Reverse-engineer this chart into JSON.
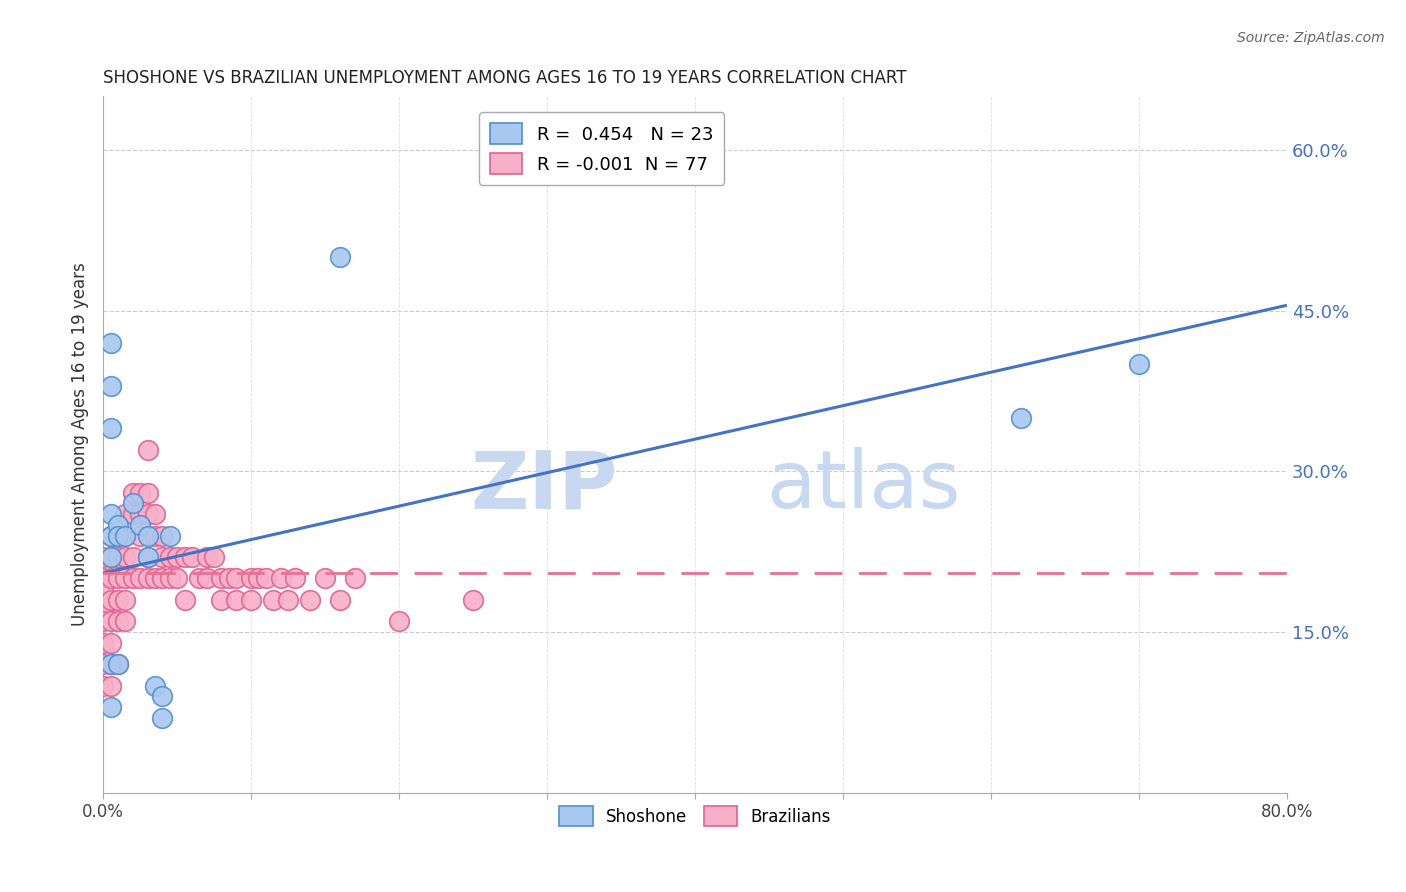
{
  "title": "SHOSHONE VS BRAZILIAN UNEMPLOYMENT AMONG AGES 16 TO 19 YEARS CORRELATION CHART",
  "source": "Source: ZipAtlas.com",
  "ylabel": "Unemployment Among Ages 16 to 19 years",
  "xlim": [
    0,
    0.8
  ],
  "ylim": [
    0,
    0.65
  ],
  "right_yticks": [
    0.15,
    0.3,
    0.45,
    0.6
  ],
  "right_yticklabels": [
    "15.0%",
    "30.0%",
    "45.0%",
    "60.0%"
  ],
  "xtick_positions": [
    0.0,
    0.1,
    0.2,
    0.3,
    0.4,
    0.5,
    0.6,
    0.7,
    0.8
  ],
  "xtick_show_labels": [
    true,
    false,
    false,
    false,
    false,
    false,
    false,
    false,
    true
  ],
  "xtick_label_values": [
    "0.0%",
    "",
    "",
    "",
    "",
    "",
    "",
    "",
    "80.0%"
  ],
  "grid_yticks": [
    0.15,
    0.3,
    0.45,
    0.6
  ],
  "grid_xticks": [
    0.1,
    0.2,
    0.3,
    0.4,
    0.5,
    0.6,
    0.7
  ],
  "shoshone_color": "#A8C8F0",
  "shoshone_edge_color": "#5090D0",
  "brazilian_color": "#F8B0C8",
  "brazilian_edge_color": "#E06090",
  "shoshone_R": 0.454,
  "shoshone_N": 23,
  "brazilian_R": -0.001,
  "brazilian_N": 77,
  "trend_blue_color": "#4472C4",
  "trend_pink_color": "#E87090",
  "shoshone_trend_start_y": 0.205,
  "shoshone_trend_end_y": 0.455,
  "brazilian_trend_y": 0.205,
  "watermark_zip": "ZIP",
  "watermark_atlas": "atlas",
  "watermark_color": "#C8D8F0",
  "shoshone_x": [
    0.005,
    0.005,
    0.005,
    0.01,
    0.01,
    0.015,
    0.02,
    0.025,
    0.03,
    0.03,
    0.035,
    0.04,
    0.04,
    0.045,
    0.005,
    0.005,
    0.01,
    0.005,
    0.005,
    0.005,
    0.16,
    0.62,
    0.7
  ],
  "shoshone_y": [
    0.24,
    0.26,
    0.22,
    0.25,
    0.24,
    0.24,
    0.27,
    0.25,
    0.24,
    0.22,
    0.1,
    0.09,
    0.07,
    0.24,
    0.12,
    0.08,
    0.12,
    0.42,
    0.38,
    0.34,
    0.5,
    0.35,
    0.4
  ],
  "brazilian_x": [
    0.0,
    0.0,
    0.0,
    0.0,
    0.0,
    0.0,
    0.0,
    0.0,
    0.005,
    0.005,
    0.005,
    0.005,
    0.005,
    0.005,
    0.005,
    0.005,
    0.01,
    0.01,
    0.01,
    0.01,
    0.01,
    0.01,
    0.015,
    0.015,
    0.015,
    0.015,
    0.015,
    0.015,
    0.02,
    0.02,
    0.02,
    0.02,
    0.025,
    0.025,
    0.025,
    0.025,
    0.03,
    0.03,
    0.03,
    0.03,
    0.03,
    0.035,
    0.035,
    0.035,
    0.04,
    0.04,
    0.04,
    0.045,
    0.045,
    0.05,
    0.05,
    0.055,
    0.055,
    0.06,
    0.065,
    0.07,
    0.07,
    0.075,
    0.08,
    0.08,
    0.085,
    0.09,
    0.09,
    0.1,
    0.1,
    0.105,
    0.11,
    0.115,
    0.12,
    0.125,
    0.13,
    0.14,
    0.15,
    0.16,
    0.17,
    0.2,
    0.25
  ],
  "brazilian_y": [
    0.22,
    0.2,
    0.19,
    0.17,
    0.16,
    0.14,
    0.12,
    0.1,
    0.24,
    0.22,
    0.2,
    0.18,
    0.16,
    0.14,
    0.12,
    0.1,
    0.24,
    0.22,
    0.2,
    0.18,
    0.16,
    0.12,
    0.26,
    0.24,
    0.22,
    0.2,
    0.18,
    0.16,
    0.28,
    0.26,
    0.22,
    0.2,
    0.28,
    0.26,
    0.24,
    0.2,
    0.32,
    0.28,
    0.26,
    0.22,
    0.2,
    0.26,
    0.24,
    0.2,
    0.24,
    0.22,
    0.2,
    0.22,
    0.2,
    0.22,
    0.2,
    0.22,
    0.18,
    0.22,
    0.2,
    0.22,
    0.2,
    0.22,
    0.2,
    0.18,
    0.2,
    0.2,
    0.18,
    0.2,
    0.18,
    0.2,
    0.2,
    0.18,
    0.2,
    0.18,
    0.2,
    0.18,
    0.2,
    0.18,
    0.2,
    0.16,
    0.18
  ]
}
